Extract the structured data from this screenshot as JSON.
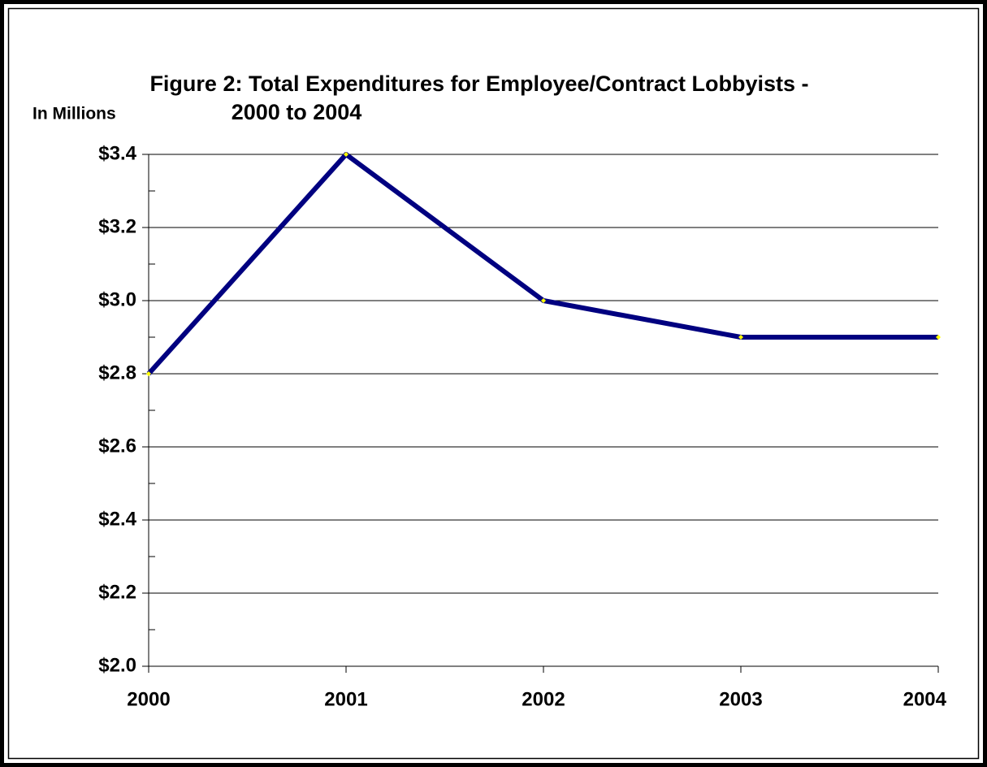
{
  "chart_data": {
    "type": "line",
    "title": [
      "Figure 2:  Total Expenditures for Employee/Contract Lobbyists -",
      "2000 to 2004"
    ],
    "y_label": "In Millions",
    "categories": [
      "2000",
      "2001",
      "2002",
      "2003",
      "2004"
    ],
    "values": [
      2.8,
      3.4,
      3.0,
      2.9,
      2.9
    ],
    "color": "#000080",
    "marker_color": "#ffff00",
    "ylim": [
      2.0,
      3.4
    ],
    "yticks": [
      {
        "value": 2.0,
        "label": "$2.0"
      },
      {
        "value": 2.2,
        "label": "$2.2"
      },
      {
        "value": 2.4,
        "label": "$2.4"
      },
      {
        "value": 2.6,
        "label": "$2.6"
      },
      {
        "value": 2.8,
        "label": "$2.8"
      },
      {
        "value": 3.0,
        "label": "$3.0"
      },
      {
        "value": 3.2,
        "label": "$3.2"
      },
      {
        "value": 3.4,
        "label": "$3.4"
      }
    ],
    "yminorticks": [
      2.1,
      2.3,
      2.5,
      2.7,
      2.9,
      3.1,
      3.3
    ],
    "grid": true
  }
}
